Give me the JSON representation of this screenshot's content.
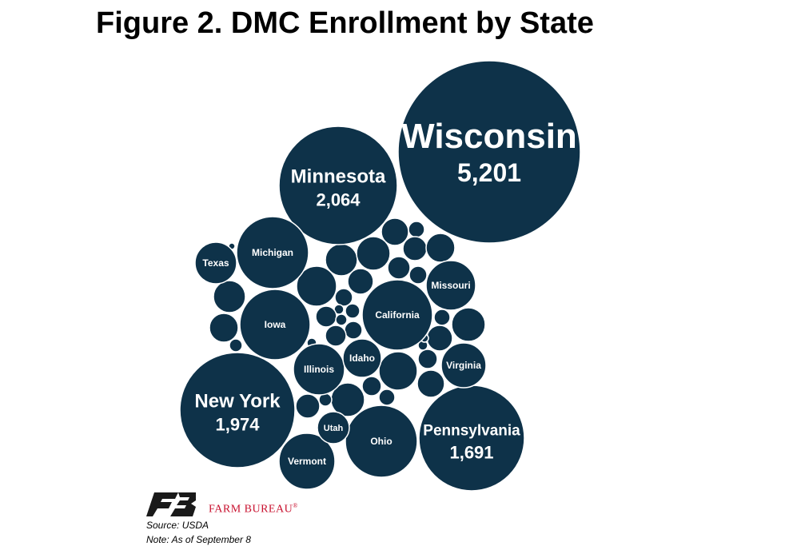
{
  "title": "Figure 2. DMC Enrollment by State",
  "chart_data": {
    "type": "bubble",
    "bubble_color": "#0e3249",
    "labeled": [
      {
        "state": "Wisconsin",
        "value": "5,201"
      },
      {
        "state": "Minnesota",
        "value": "2,064"
      },
      {
        "state": "New York",
        "value": "1,974"
      },
      {
        "state": "Pennsylvania",
        "value": "1,691"
      },
      {
        "state": "California",
        "value": null
      },
      {
        "state": "Iowa",
        "value": null
      },
      {
        "state": "Michigan",
        "value": null
      },
      {
        "state": "Ohio",
        "value": null
      },
      {
        "state": "Illinois",
        "value": null
      },
      {
        "state": "Vermont",
        "value": null
      },
      {
        "state": "Missouri",
        "value": null
      },
      {
        "state": "Virginia",
        "value": null
      },
      {
        "state": "Texas",
        "value": null
      },
      {
        "state": "Idaho",
        "value": null
      },
      {
        "state": "Utah",
        "value": null
      }
    ],
    "unlabeled_count": 35
  },
  "logo": {
    "text": "FARM BUREAU",
    "mark": "®",
    "color": "#c8102e"
  },
  "footnotes": {
    "source": "Source:  USDA",
    "note": "Note: As of September 8"
  }
}
